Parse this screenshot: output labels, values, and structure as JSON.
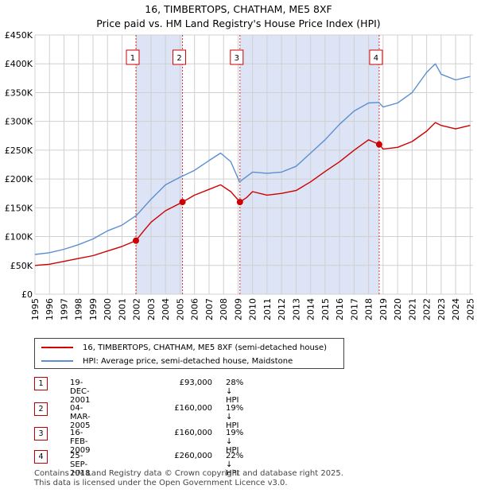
{
  "title": "16, TIMBERTOPS, CHATHAM, ME5 8XF",
  "subtitle": "Price paid vs. HM Land Registry's House Price Index (HPI)",
  "legend": {
    "property_label": "16, TIMBERTOPS, CHATHAM, ME5 8XF (semi-detached house)",
    "hpi_label": "HPI: Average price, semi-detached house, Maidstone"
  },
  "colors": {
    "property": "#cc0000",
    "hpi": "#5b8fd0",
    "shade": "#dde4f5",
    "grid": "#d0d0d0"
  },
  "transactions": [
    {
      "n": "1",
      "date": "19-DEC-2001",
      "price": "£93,000",
      "hpi": "28% ↓ HPI"
    },
    {
      "n": "2",
      "date": "04-MAR-2005",
      "price": "£160,000",
      "hpi": "19% ↓ HPI"
    },
    {
      "n": "3",
      "date": "16-FEB-2009",
      "price": "£160,000",
      "hpi": "19% ↓ HPI"
    },
    {
      "n": "4",
      "date": "25-SEP-2018",
      "price": "£260,000",
      "hpi": "22% ↓ HPI"
    }
  ],
  "footer": {
    "line1": "Contains HM Land Registry data © Crown copyright and database right 2025.",
    "line2": "This data is licensed under the Open Government Licence v3.0."
  },
  "chart_data": {
    "type": "line",
    "xlim": [
      1995,
      2025.2
    ],
    "ylim": [
      0,
      450000
    ],
    "y_ticks": [
      0,
      50000,
      100000,
      150000,
      200000,
      250000,
      300000,
      350000,
      400000,
      450000
    ],
    "y_tick_labels": [
      "£0",
      "£50K",
      "£100K",
      "£150K",
      "£200K",
      "£250K",
      "£300K",
      "£350K",
      "£400K",
      "£450K"
    ],
    "x_ticks": [
      1995,
      1996,
      1997,
      1998,
      1999,
      2000,
      2001,
      2002,
      2003,
      2004,
      2005,
      2006,
      2007,
      2008,
      2009,
      2010,
      2011,
      2012,
      2013,
      2014,
      2015,
      2016,
      2017,
      2018,
      2019,
      2020,
      2021,
      2022,
      2023,
      2024,
      2025
    ],
    "sales": [
      {
        "label": "1",
        "x": 2001.96,
        "y": 93000
      },
      {
        "label": "2",
        "x": 2005.17,
        "y": 160000
      },
      {
        "label": "3",
        "x": 2009.13,
        "y": 160000
      },
      {
        "label": "4",
        "x": 2018.73,
        "y": 260000
      }
    ],
    "shaded_ranges": [
      [
        2001.96,
        2005.17
      ],
      [
        2009.13,
        2018.73
      ]
    ],
    "series": [
      {
        "name": "16, TIMBERTOPS, CHATHAM, ME5 8XF (semi-detached house)",
        "x": [
          1995,
          1996,
          1997,
          1998,
          1999,
          2000,
          2001,
          2001.96,
          2002.5,
          2003,
          2004,
          2005.17,
          2006,
          2007,
          2007.8,
          2008.5,
          2009.13,
          2009.6,
          2010,
          2011,
          2012,
          2013,
          2014,
          2015,
          2016,
          2017,
          2018,
          2018.73,
          2019,
          2020,
          2021,
          2022,
          2022.6,
          2023,
          2024,
          2025
        ],
        "y": [
          50000,
          52000,
          57000,
          62000,
          67000,
          75000,
          83000,
          93000,
          110000,
          125000,
          145000,
          160000,
          172000,
          182000,
          190000,
          178000,
          160000,
          168000,
          178000,
          172000,
          175000,
          180000,
          195000,
          213000,
          230000,
          250000,
          268000,
          260000,
          252000,
          255000,
          265000,
          283000,
          298000,
          293000,
          287000,
          293000
        ]
      },
      {
        "name": "HPI: Average price, semi-detached house, Maidstone",
        "x": [
          1995,
          1996,
          1997,
          1998,
          1999,
          2000,
          2001,
          2002,
          2003,
          2004,
          2005,
          2006,
          2007,
          2007.8,
          2008.5,
          2009.1,
          2010,
          2011,
          2012,
          2013,
          2014,
          2015,
          2016,
          2017,
          2018,
          2018.7,
          2019,
          2020,
          2021,
          2022,
          2022.6,
          2023,
          2024,
          2025
        ],
        "y": [
          69000,
          72000,
          78000,
          86000,
          96000,
          110000,
          120000,
          137000,
          165000,
          190000,
          203000,
          215000,
          232000,
          245000,
          230000,
          195000,
          212000,
          210000,
          212000,
          222000,
          245000,
          268000,
          295000,
          318000,
          332000,
          333000,
          325000,
          332000,
          350000,
          385000,
          400000,
          382000,
          372000,
          378000
        ]
      }
    ]
  }
}
